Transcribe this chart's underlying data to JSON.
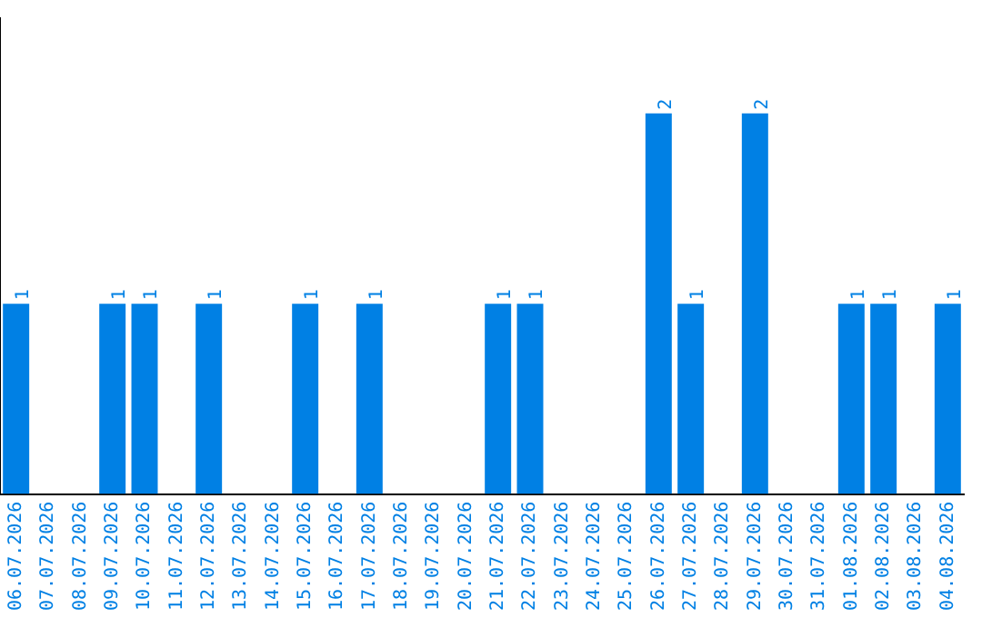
{
  "chart_data": {
    "type": "bar",
    "categories": [
      "06.07.2026",
      "07.07.2026",
      "08.07.2026",
      "09.07.2026",
      "10.07.2026",
      "11.07.2026",
      "12.07.2026",
      "13.07.2026",
      "14.07.2026",
      "15.07.2026",
      "16.07.2026",
      "17.07.2026",
      "18.07.2026",
      "19.07.2026",
      "20.07.2026",
      "21.07.2026",
      "22.07.2026",
      "23.07.2026",
      "24.07.2026",
      "25.07.2026",
      "26.07.2026",
      "27.07.2026",
      "28.07.2026",
      "29.07.2026",
      "30.07.2026",
      "31.07.2026",
      "01.08.2026",
      "02.08.2026",
      "03.08.2026",
      "04.08.2026"
    ],
    "values": [
      1,
      0,
      0,
      1,
      1,
      0,
      1,
      0,
      0,
      1,
      0,
      1,
      0,
      0,
      0,
      1,
      1,
      0,
      0,
      0,
      2,
      1,
      0,
      2,
      0,
      0,
      1,
      1,
      0,
      1
    ],
    "value_labels": [
      "1",
      null,
      null,
      "1",
      "1",
      null,
      "1",
      null,
      null,
      "1",
      null,
      "1",
      null,
      null,
      null,
      "1",
      "1",
      null,
      null,
      null,
      "2",
      "1",
      null,
      "2",
      null,
      null,
      "1",
      "1",
      null,
      "1"
    ],
    "color": "#0080e4",
    "tick_labels": "x",
    "grid": false,
    "legend": false
  }
}
